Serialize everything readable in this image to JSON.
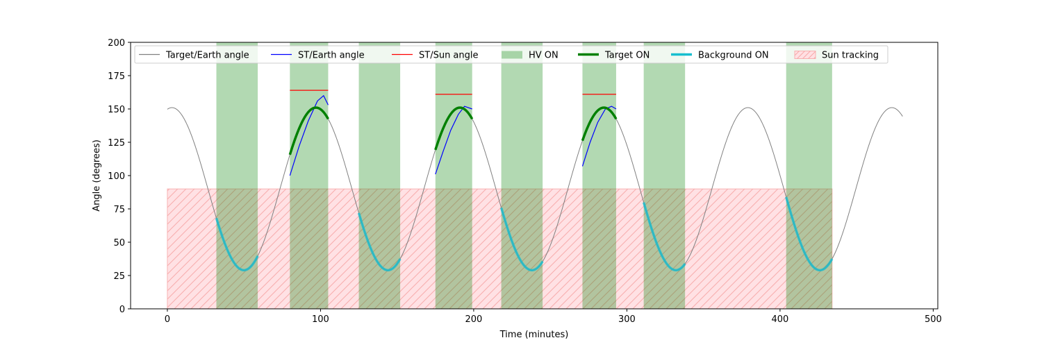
{
  "chart_data": {
    "type": "line",
    "title": "",
    "xlabel": "Time (minutes)",
    "ylabel": "Angle (degrees)",
    "xlim": [
      -24,
      503
    ],
    "ylim": [
      0,
      200
    ],
    "xticks": [
      0,
      100,
      200,
      300,
      400,
      500
    ],
    "yticks": [
      0,
      25,
      50,
      75,
      100,
      125,
      150,
      175,
      200
    ],
    "grid": false,
    "legend_position": "top (single row, inside axes)",
    "legend": [
      {
        "label": "Target/Earth angle",
        "kind": "line",
        "color": "#808080"
      },
      {
        "label": "ST/Earth angle",
        "kind": "line",
        "color": "#0000ff"
      },
      {
        "label": "ST/Sun angle",
        "kind": "line",
        "color": "#ff0000"
      },
      {
        "label": "HV ON",
        "kind": "patch",
        "color": "#008000"
      },
      {
        "label": "Target ON",
        "kind": "thickline",
        "color": "#008000"
      },
      {
        "label": "Background ON",
        "kind": "thickline",
        "color": "#17becf"
      },
      {
        "label": "Sun tracking",
        "kind": "hatch",
        "color": "#ff9999"
      }
    ],
    "target_earth_angle": {
      "name": "Target/Earth angle",
      "color": "#808080",
      "x_range": [
        0,
        480
      ],
      "mean": 90,
      "amplitude": 61,
      "period": 94,
      "peak_at": 3
    },
    "hv_on_intervals": [
      [
        32,
        59
      ],
      [
        80,
        105
      ],
      [
        125,
        152
      ],
      [
        175,
        199
      ],
      [
        218,
        245
      ],
      [
        271,
        293
      ],
      [
        311,
        338
      ],
      [
        404,
        434
      ]
    ],
    "target_on_intervals": [
      [
        80,
        105
      ],
      [
        175,
        199
      ],
      [
        271,
        293
      ]
    ],
    "background_on_intervals": [
      [
        32,
        59
      ],
      [
        125,
        152
      ],
      [
        218,
        245
      ],
      [
        311,
        338
      ],
      [
        404,
        434
      ]
    ],
    "sun_tracking": {
      "x_range": [
        0,
        434
      ],
      "y_range": [
        0,
        90
      ],
      "color": "#ff9999"
    },
    "st_earth_angle": {
      "name": "ST/Earth angle",
      "color": "#0000ff",
      "segments": [
        {
          "x": [
            80,
            86,
            92,
            98,
            102,
            105
          ],
          "y": [
            100,
            122,
            141,
            156,
            160,
            153
          ]
        },
        {
          "x": [
            175,
            180,
            185,
            190,
            194,
            199
          ],
          "y": [
            101,
            118,
            134,
            146,
            152,
            150
          ]
        },
        {
          "x": [
            271,
            276,
            281,
            286,
            290,
            293
          ],
          "y": [
            107,
            125,
            140,
            150,
            152,
            150
          ]
        }
      ]
    },
    "st_sun_angle": {
      "name": "ST/Sun angle",
      "color": "#ff0000",
      "segments": [
        {
          "x": [
            80,
            105
          ],
          "y": [
            164,
            164
          ]
        },
        {
          "x": [
            175,
            199
          ],
          "y": [
            161,
            161
          ]
        },
        {
          "x": [
            271,
            293
          ],
          "y": [
            161,
            161
          ]
        }
      ]
    }
  }
}
